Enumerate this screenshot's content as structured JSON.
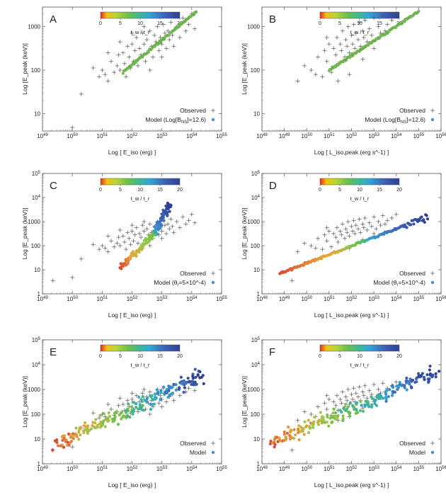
{
  "chart_data": [
    {
      "letter": "A",
      "type": "scatter",
      "xlabel": "Log [ E_iso (erg) ]",
      "ylabel": "Log [E_peak (keV)]",
      "xlim": [
        49,
        55
      ],
      "ylim": [
        0.6,
        3.45
      ],
      "x_ticks": [
        "10^49",
        "10^50",
        "10^51",
        "10^52",
        "10^53",
        "10^54",
        "10^55"
      ],
      "y_ticks": [
        "10",
        "100",
        "1000"
      ],
      "colorbar": {
        "label": "t_w / t_r",
        "ticks": [
          "0",
          "5",
          "10",
          "15",
          "20"
        ]
      },
      "legend": {
        "observed": "Observed",
        "model_prefix": "Model (Log[B",
        "model_sub": "NS",
        "model_suffix": "]=12.6)"
      },
      "model": {
        "shape": "line",
        "x0": 51.7,
        "y0": 1.95,
        "x1": 54.15,
        "y1": 3.35,
        "n": 95,
        "scatter": 0.03,
        "color": "green"
      }
    },
    {
      "letter": "B",
      "type": "scatter",
      "xlabel": "Log [ L_iso,peak (erg s^-1) ]",
      "ylabel": "Log [E_peak (keV)]",
      "xlim": [
        48,
        56
      ],
      "ylim": [
        0.6,
        3.45
      ],
      "x_ticks": [
        "10^48",
        "10^49",
        "10^50",
        "10^51",
        "10^52",
        "10^53",
        "10^54",
        "10^55",
        "10^56"
      ],
      "y_ticks": [
        "10",
        "100",
        "1000"
      ],
      "colorbar": {
        "label": "t_w / t_r",
        "ticks": [
          "0",
          "5",
          "10",
          "15",
          "20"
        ]
      },
      "legend": {
        "observed": "Observed",
        "model_prefix": "Model (Log[B",
        "model_sub": "NS",
        "model_suffix": "]=12.6)"
      },
      "model": {
        "shape": "line",
        "x0": 51.0,
        "y0": 2.0,
        "x1": 55.0,
        "y1": 3.35,
        "n": 110,
        "scatter": 0.03,
        "color": "green"
      }
    },
    {
      "letter": "C",
      "type": "scatter",
      "xlabel": "Log [ E_iso (erg) ]",
      "ylabel": "Log [E_peak (keV)]",
      "xlim": [
        49,
        55
      ],
      "ylim": [
        0,
        5
      ],
      "x_ticks": [
        "10^49",
        "10^50",
        "10^51",
        "10^52",
        "10^53",
        "10^54",
        "10^55"
      ],
      "y_ticks": [
        "1",
        "10",
        "100",
        "1000",
        "10^4",
        "10^5"
      ],
      "colorbar": {
        "label": "t_w / t_r",
        "ticks": [
          "0",
          "5",
          "10",
          "15",
          "20"
        ]
      },
      "legend": {
        "observed": "Observed",
        "model_prefix": "Model (θ",
        "model_sub": "r",
        "model_suffix": "=5×10^-4)"
      },
      "model": {
        "shape": "curveC",
        "n": 150,
        "scatter": 0.06
      }
    },
    {
      "letter": "D",
      "type": "scatter",
      "xlabel": "Log [ L_iso,peak (erg s^-1) ]",
      "ylabel": "Log [E_peak (keV)]",
      "xlim": [
        48,
        56
      ],
      "ylim": [
        0,
        5
      ],
      "x_ticks": [
        "10^48",
        "10^49",
        "10^50",
        "10^51",
        "10^52",
        "10^53",
        "10^54",
        "10^55",
        "10^56"
      ],
      "y_ticks": [
        "1",
        "10",
        "100",
        "1000",
        "10^4",
        "10^5"
      ],
      "colorbar": {
        "label": "t_w / t_r",
        "ticks": [
          "0",
          "5",
          "10",
          "15",
          "20"
        ]
      },
      "legend": {
        "observed": "Observed",
        "model_prefix": "Model (θ",
        "model_sub": "r",
        "model_suffix": "=5×10^-4)"
      },
      "model": {
        "shape": "curveD",
        "n": 150,
        "scatter": 0.05
      }
    },
    {
      "letter": "E",
      "type": "scatter",
      "xlabel": "Log [ E_iso (erg) ]",
      "ylabel": "Log [E_peak (keV)]",
      "xlim": [
        49,
        55
      ],
      "ylim": [
        0,
        5
      ],
      "x_ticks": [
        "10^49",
        "10^50",
        "10^51",
        "10^52",
        "10^53",
        "10^54",
        "10^55"
      ],
      "y_ticks": [
        "1",
        "10",
        "100",
        "1000",
        "10^4",
        "10^5"
      ],
      "colorbar": {
        "label": "t_w / t_r",
        "ticks": [
          "0",
          "5",
          "10",
          "15",
          "20"
        ]
      },
      "legend": {
        "observed": "Observed",
        "model_prefix": "Model",
        "model_sub": "",
        "model_suffix": ""
      },
      "model": {
        "shape": "cloud",
        "x0": 49.4,
        "y0": 0.75,
        "x1": 54.4,
        "y1": 3.6,
        "n": 220,
        "scatter": 0.22
      }
    },
    {
      "letter": "F",
      "type": "scatter",
      "xlabel": "Log [ L_iso,peak (erg s^-1) ]",
      "ylabel": "Log [E_peak (keV)]",
      "xlim": [
        48,
        56
      ],
      "ylim": [
        0,
        5
      ],
      "x_ticks": [
        "10^48",
        "10^49",
        "10^50",
        "10^51",
        "10^52",
        "10^53",
        "10^54",
        "10^55",
        "10^56"
      ],
      "y_ticks": [
        "1",
        "10",
        "100",
        "1000",
        "10^4",
        "10^5"
      ],
      "colorbar": {
        "label": "t_w / t_r",
        "ticks": [
          "0",
          "5",
          "10",
          "15",
          "20"
        ]
      },
      "legend": {
        "observed": "Observed",
        "model_prefix": "Model",
        "model_sub": "",
        "model_suffix": ""
      },
      "model": {
        "shape": "cloud",
        "x0": 48.4,
        "y0": 0.85,
        "x1": 55.8,
        "y1": 3.7,
        "n": 230,
        "scatter": 0.22
      }
    }
  ],
  "observed_iso": [
    [
      50.0,
      0.68
    ],
    [
      50.3,
      1.45
    ],
    [
      50.7,
      2.05
    ],
    [
      50.9,
      1.85
    ],
    [
      51.0,
      2.0
    ],
    [
      51.1,
      1.9
    ],
    [
      51.2,
      1.75
    ],
    [
      51.3,
      2.2
    ],
    [
      51.4,
      1.95
    ],
    [
      51.5,
      2.1
    ],
    [
      51.55,
      2.35
    ],
    [
      51.6,
      2.0
    ],
    [
      51.7,
      2.4
    ],
    [
      51.75,
      2.15
    ],
    [
      51.8,
      1.85
    ],
    [
      51.85,
      2.55
    ],
    [
      51.9,
      2.3
    ],
    [
      51.95,
      2.05
    ],
    [
      52.0,
      2.6
    ],
    [
      52.05,
      2.2
    ],
    [
      52.1,
      2.45
    ],
    [
      52.15,
      2.75
    ],
    [
      52.2,
      2.1
    ],
    [
      52.25,
      2.5
    ],
    [
      52.3,
      2.35
    ],
    [
      52.35,
      2.85
    ],
    [
      52.4,
      2.6
    ],
    [
      52.45,
      2.2
    ],
    [
      52.5,
      2.7
    ],
    [
      52.55,
      2.45
    ],
    [
      52.6,
      2.9
    ],
    [
      52.65,
      2.55
    ],
    [
      52.7,
      2.3
    ],
    [
      52.75,
      2.8
    ],
    [
      52.8,
      2.65
    ],
    [
      52.85,
      3.0
    ],
    [
      52.9,
      2.45
    ],
    [
      52.95,
      2.75
    ],
    [
      53.0,
      2.6
    ],
    [
      53.05,
      3.05
    ],
    [
      53.1,
      2.85
    ],
    [
      53.15,
      2.5
    ],
    [
      53.2,
      2.9
    ],
    [
      53.25,
      2.7
    ],
    [
      53.3,
      3.1
    ],
    [
      53.35,
      2.8
    ],
    [
      53.4,
      2.55
    ],
    [
      53.5,
      3.0
    ],
    [
      53.6,
      2.75
    ],
    [
      53.7,
      3.2
    ],
    [
      53.8,
      2.9
    ],
    [
      53.9,
      3.05
    ],
    [
      54.0,
      3.3
    ],
    [
      54.1,
      2.95
    ],
    [
      51.6,
      2.65
    ],
    [
      52.0,
      2.85
    ],
    [
      52.4,
      3.0
    ],
    [
      51.2,
      2.4
    ],
    [
      53.0,
      2.3
    ],
    [
      52.6,
      2.0
    ]
  ],
  "observed_lum": [
    [
      49.6,
      1.75
    ],
    [
      49.9,
      2.1
    ],
    [
      50.2,
      2.0
    ],
    [
      50.4,
      1.9
    ],
    [
      50.5,
      2.3
    ],
    [
      50.7,
      1.85
    ],
    [
      50.8,
      2.45
    ],
    [
      50.9,
      2.2
    ],
    [
      51.0,
      2.6
    ],
    [
      51.1,
      1.95
    ],
    [
      51.2,
      2.5
    ],
    [
      51.3,
      2.35
    ],
    [
      51.35,
      2.75
    ],
    [
      51.4,
      2.15
    ],
    [
      51.5,
      2.6
    ],
    [
      51.55,
      2.45
    ],
    [
      51.6,
      2.9
    ],
    [
      51.7,
      2.3
    ],
    [
      51.75,
      2.7
    ],
    [
      51.8,
      2.55
    ],
    [
      51.85,
      3.0
    ],
    [
      51.9,
      2.4
    ],
    [
      52.0,
      2.8
    ],
    [
      52.05,
      2.6
    ],
    [
      52.1,
      3.05
    ],
    [
      52.15,
      2.5
    ],
    [
      52.2,
      2.85
    ],
    [
      52.3,
      2.7
    ],
    [
      52.35,
      3.1
    ],
    [
      52.4,
      2.55
    ],
    [
      52.5,
      2.9
    ],
    [
      52.55,
      2.75
    ],
    [
      52.6,
      3.15
    ],
    [
      52.7,
      2.65
    ],
    [
      52.8,
      2.95
    ],
    [
      52.9,
      2.8
    ],
    [
      53.0,
      3.2
    ],
    [
      53.1,
      2.7
    ],
    [
      53.2,
      3.0
    ],
    [
      53.3,
      2.85
    ],
    [
      53.4,
      3.25
    ],
    [
      53.5,
      2.9
    ],
    [
      53.6,
      3.05
    ],
    [
      53.8,
      3.15
    ],
    [
      54.0,
      3.3
    ],
    [
      51.9,
      1.9
    ],
    [
      52.5,
      2.25
    ],
    [
      50.9,
      2.75
    ],
    [
      51.4,
      1.75
    ],
    [
      53.0,
      2.5
    ]
  ],
  "observed_extra_iso": [
    [
      49.35,
      0.55
    ]
  ],
  "observed_extra_lum": [
    [
      49.35,
      0.55
    ]
  ]
}
